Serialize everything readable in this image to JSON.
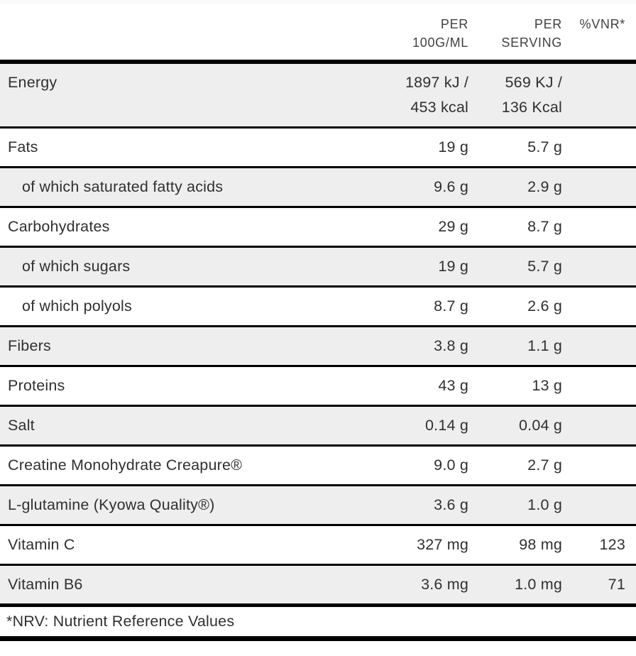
{
  "header": {
    "per_100": "PER\n100G/ML",
    "per_serving": "PER\nSERVING",
    "nrv": "%VNR*"
  },
  "table": {
    "rows": [
      {
        "label": "Energy",
        "per100": "1897 kJ /\n453 kcal",
        "perServing": "569 KJ /\n136 Kcal",
        "nrv": ""
      },
      {
        "label": "Fats",
        "per100": "19 g",
        "perServing": "5.7 g",
        "nrv": ""
      },
      {
        "label": "of which saturated fatty acids",
        "per100": "9.6 g",
        "perServing": "2.9 g",
        "nrv": ""
      },
      {
        "label": "Carbohydrates",
        "per100": "29 g",
        "perServing": "8.7 g",
        "nrv": ""
      },
      {
        "label": "of which sugars",
        "per100": "19 g",
        "perServing": "5.7 g",
        "nrv": ""
      },
      {
        "label": "of which polyols",
        "per100": "8.7 g",
        "perServing": "2.6 g",
        "nrv": ""
      },
      {
        "label": "Fibers",
        "per100": "3.8 g",
        "perServing": "1.1 g",
        "nrv": ""
      },
      {
        "label": "Proteins",
        "per100": "43 g",
        "perServing": "13 g",
        "nrv": ""
      },
      {
        "label": "Salt",
        "per100": "0.14 g",
        "perServing": "0.04 g",
        "nrv": ""
      },
      {
        "label": "Creatine Monohydrate Creapure®",
        "per100": "9.0 g",
        "perServing": "2.7 g",
        "nrv": ""
      },
      {
        "label": "L-glutamine (Kyowa Quality®)",
        "per100": "3.6 g",
        "perServing": "1.0 g",
        "nrv": ""
      },
      {
        "label": "Vitamin C",
        "per100": "327 mg",
        "perServing": "98 mg",
        "nrv": "123"
      },
      {
        "label": "Vitamin B6",
        "per100": "3.6 mg",
        "perServing": "1.0 mg",
        "nrv": "71"
      }
    ]
  },
  "footnote": "*NRV: Nutrient Reference Values",
  "colors": {
    "row_shade": "#eeeeee",
    "rule": "#000000",
    "text": "#303030",
    "header_text": "#414141"
  }
}
